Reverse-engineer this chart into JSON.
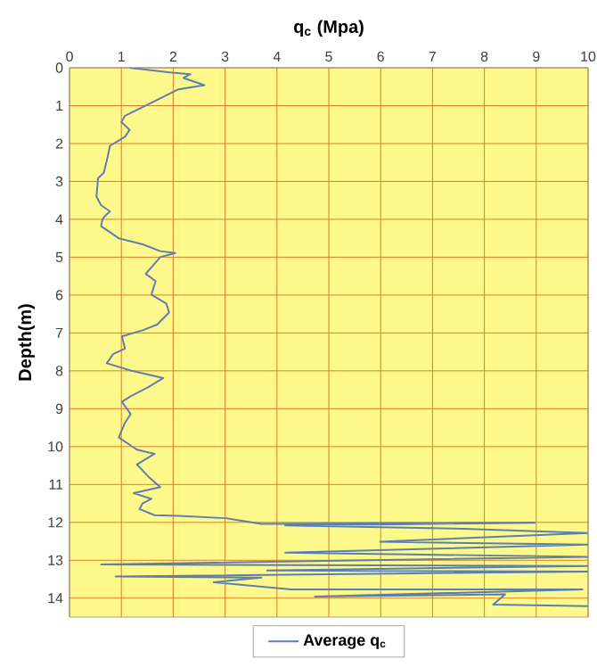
{
  "chart_data": {
    "type": "line",
    "xlabel": "q$_{c}$ (Mpa)",
    "ylabel": "Depth(m)",
    "xlim": [
      0,
      10
    ],
    "ylim": [
      14.5,
      0
    ],
    "xticks": [
      0,
      1,
      2,
      3,
      4,
      5,
      6,
      7,
      8,
      9,
      10
    ],
    "yticks": [
      0,
      1,
      2,
      3,
      4,
      5,
      6,
      7,
      8,
      9,
      10,
      11,
      12,
      13,
      14
    ],
    "grid": true,
    "legend": "bottom",
    "series": [
      {
        "name": "Average q$_{c}$",
        "color": "#5b80b0",
        "x": [
          1.16,
          1.98,
          2.33,
          2.2,
          2.6,
          2.1,
          1.41,
          1.07,
          1.0,
          1.16,
          1.07,
          0.78,
          0.72,
          0.66,
          0.55,
          0.52,
          0.61,
          0.78,
          0.66,
          0.63,
          0.61,
          0.95,
          1.41,
          1.75,
          2.04,
          1.75,
          1.47,
          1.66,
          1.58,
          1.87,
          1.92,
          1.69,
          1.41,
          1.01,
          1.07,
          0.84,
          0.72,
          1.18,
          1.81,
          1.52,
          1.18,
          1.01,
          1.18,
          1.07,
          0.95,
          1.3,
          1.64,
          1.3,
          1.52,
          1.75,
          1.24,
          1.58,
          1.41,
          1.35,
          1.64,
          2.1,
          3.01,
          3.7,
          8.97,
          4.16,
          7.6,
          10,
          5.99,
          10,
          4.16,
          10,
          0.61,
          10,
          3.81,
          10,
          0.89,
          3.7,
          2.78,
          4.27,
          9.89,
          4.73,
          8.4,
          8.17,
          10
        ],
        "values": [
          0,
          0.13,
          0.17,
          0.27,
          0.46,
          0.57,
          1.04,
          1.27,
          1.43,
          1.64,
          1.82,
          2.06,
          2.45,
          2.77,
          2.92,
          3.4,
          3.63,
          3.79,
          3.95,
          4.03,
          4.18,
          4.5,
          4.66,
          4.84,
          4.89,
          5.0,
          5.44,
          5.63,
          5.99,
          6.23,
          6.46,
          6.78,
          6.93,
          7.09,
          7.41,
          7.56,
          7.8,
          7.99,
          8.19,
          8.43,
          8.67,
          8.82,
          9.14,
          9.37,
          9.76,
          10.08,
          10.19,
          10.47,
          10.79,
          11.07,
          11.23,
          11.38,
          11.5,
          11.65,
          11.81,
          11.83,
          11.89,
          12.04,
          12.01,
          12.08,
          12.17,
          12.28,
          12.51,
          12.59,
          12.8,
          12.91,
          13.11,
          13.15,
          13.27,
          13.3,
          13.43,
          13.46,
          13.58,
          13.77,
          13.77,
          13.96,
          13.9,
          14.17,
          14.21
        ]
      }
    ]
  }
}
